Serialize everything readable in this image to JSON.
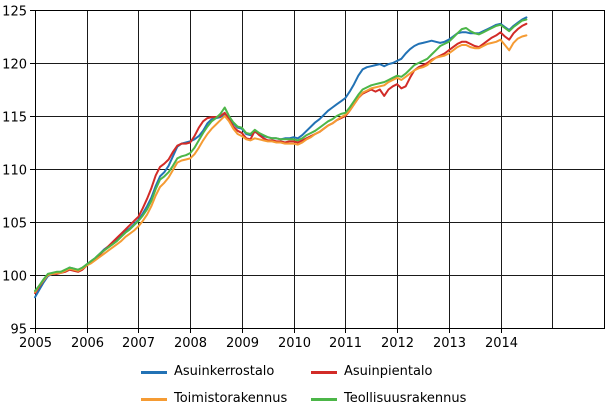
{
  "chart_data": {
    "type": "line",
    "title": "",
    "xlabel": "",
    "ylabel": "",
    "grid": true,
    "legend_position": "bottom",
    "x_axis": {
      "start_year": 2005,
      "points_per_year": 12,
      "tick_labels": [
        "2005",
        "2006",
        "2007",
        "2008",
        "2009",
        "2010",
        "2011",
        "2012",
        "2013",
        "2014"
      ],
      "extra_unlabeled_right_span_years": 1
    },
    "y_axis": {
      "min": 95,
      "max": 125,
      "ticks": [
        95,
        100,
        105,
        110,
        115,
        120,
        125
      ]
    },
    "series": [
      {
        "name": "Asuinkerrostalo",
        "color": "#2272b5",
        "values": [
          97.9,
          98.6,
          99.3,
          99.9,
          100.1,
          100.2,
          100.3,
          100.4,
          100.7,
          100.6,
          100.4,
          100.6,
          101.0,
          101.3,
          101.6,
          102.0,
          102.4,
          102.7,
          103.0,
          103.3,
          103.7,
          104.1,
          104.4,
          104.8,
          105.2,
          105.8,
          106.5,
          107.3,
          108.4,
          109.3,
          109.7,
          110.3,
          111.2,
          112.1,
          112.4,
          112.5,
          112.6,
          112.8,
          113.1,
          113.6,
          114.3,
          114.7,
          114.8,
          114.9,
          115.2,
          114.8,
          114.3,
          113.9,
          113.8,
          113.3,
          113.2,
          113.5,
          113.3,
          113.1,
          113.0,
          112.9,
          112.9,
          112.8,
          112.9,
          112.9,
          113.0,
          112.9,
          113.2,
          113.6,
          114.0,
          114.4,
          114.7,
          115.1,
          115.5,
          115.8,
          116.1,
          116.4,
          116.7,
          117.3,
          118.0,
          118.8,
          119.4,
          119.6,
          119.7,
          119.8,
          119.9,
          119.7,
          119.9,
          120.0,
          120.2,
          120.4,
          120.9,
          121.3,
          121.6,
          121.8,
          121.9,
          122.0,
          122.1,
          122.0,
          121.9,
          122.0,
          122.2,
          122.5,
          122.8,
          122.9,
          122.9,
          122.8,
          122.8,
          122.8,
          123.0,
          123.2,
          123.4,
          123.6,
          123.7,
          123.4,
          123.1,
          123.5,
          123.8,
          124.1,
          124.3
        ]
      },
      {
        "name": "Asuinpientalo",
        "color": "#d22b27",
        "values": [
          98.3,
          98.9,
          99.5,
          100.0,
          100.1,
          100.1,
          100.2,
          100.3,
          100.5,
          100.4,
          100.3,
          100.5,
          100.9,
          101.2,
          101.5,
          101.9,
          102.3,
          102.7,
          103.1,
          103.5,
          103.9,
          104.3,
          104.7,
          105.1,
          105.5,
          106.3,
          107.2,
          108.2,
          109.4,
          110.2,
          110.5,
          110.9,
          111.6,
          112.2,
          112.4,
          112.4,
          112.5,
          113.1,
          113.9,
          114.5,
          114.8,
          114.9,
          114.9,
          115.0,
          115.3,
          114.7,
          114.0,
          113.6,
          113.4,
          112.9,
          112.8,
          113.6,
          113.2,
          112.9,
          112.7,
          112.7,
          112.6,
          112.6,
          112.5,
          112.6,
          112.6,
          112.5,
          112.7,
          112.9,
          113.1,
          113.3,
          113.5,
          113.8,
          114.1,
          114.3,
          114.6,
          114.8,
          115.0,
          115.5,
          116.1,
          116.7,
          117.1,
          117.3,
          117.5,
          117.3,
          117.5,
          116.9,
          117.5,
          117.8,
          118.0,
          117.6,
          117.8,
          118.6,
          119.3,
          119.6,
          119.8,
          120.0,
          120.3,
          120.5,
          120.7,
          120.9,
          121.2,
          121.5,
          121.8,
          122.0,
          122.0,
          121.8,
          121.6,
          121.5,
          121.8,
          122.1,
          122.4,
          122.6,
          122.9,
          122.5,
          122.2,
          122.8,
          123.2,
          123.5,
          123.7
        ]
      },
      {
        "name": "Toimistorakennus",
        "color": "#f59b33",
        "values": [
          98.4,
          99.0,
          99.5,
          100.0,
          100.1,
          100.2,
          100.2,
          100.4,
          100.6,
          100.5,
          100.4,
          100.6,
          100.9,
          101.1,
          101.4,
          101.7,
          102.0,
          102.3,
          102.6,
          102.9,
          103.2,
          103.6,
          103.9,
          104.2,
          104.6,
          105.1,
          105.7,
          106.5,
          107.5,
          108.3,
          108.7,
          109.2,
          109.9,
          110.6,
          110.8,
          110.9,
          111.0,
          111.4,
          112.0,
          112.7,
          113.3,
          113.8,
          114.2,
          114.6,
          115.0,
          114.5,
          113.8,
          113.3,
          113.1,
          112.8,
          112.7,
          112.9,
          112.8,
          112.7,
          112.6,
          112.6,
          112.5,
          112.5,
          112.4,
          112.4,
          112.4,
          112.3,
          112.5,
          112.8,
          113.0,
          113.3,
          113.5,
          113.8,
          114.1,
          114.3,
          114.6,
          114.9,
          115.1,
          115.5,
          116.1,
          116.7,
          117.2,
          117.4,
          117.6,
          117.7,
          117.8,
          117.9,
          118.2,
          118.4,
          118.6,
          118.4,
          118.7,
          119.0,
          119.3,
          119.5,
          119.6,
          119.8,
          120.2,
          120.5,
          120.6,
          120.7,
          120.9,
          121.2,
          121.5,
          121.7,
          121.7,
          121.5,
          121.4,
          121.4,
          121.6,
          121.8,
          121.9,
          122.0,
          122.2,
          121.7,
          121.2,
          121.9,
          122.3,
          122.5,
          122.6
        ]
      },
      {
        "name": "Teollisuusrakennus",
        "color": "#4cb648",
        "values": [
          98.5,
          99.0,
          99.6,
          100.1,
          100.2,
          100.3,
          100.3,
          100.5,
          100.7,
          100.6,
          100.5,
          100.7,
          101.0,
          101.3,
          101.6,
          102.0,
          102.3,
          102.6,
          102.9,
          103.2,
          103.6,
          104.0,
          104.3,
          104.7,
          105.1,
          105.6,
          106.2,
          107.0,
          108.1,
          109.0,
          109.3,
          109.7,
          110.3,
          111.0,
          111.2,
          111.3,
          111.5,
          112.0,
          112.7,
          113.4,
          114.0,
          114.5,
          114.8,
          115.2,
          115.8,
          115.0,
          114.4,
          114.0,
          113.9,
          113.4,
          113.3,
          113.7,
          113.4,
          113.2,
          113.0,
          112.9,
          112.9,
          112.8,
          112.8,
          112.8,
          112.8,
          112.7,
          112.9,
          113.2,
          113.4,
          113.6,
          113.9,
          114.2,
          114.5,
          114.7,
          115.0,
          115.2,
          115.3,
          115.8,
          116.4,
          117.0,
          117.5,
          117.7,
          117.9,
          118.0,
          118.1,
          118.2,
          118.4,
          118.6,
          118.8,
          118.7,
          119.0,
          119.4,
          119.8,
          120.0,
          120.2,
          120.4,
          120.8,
          121.2,
          121.6,
          121.8,
          122.0,
          122.4,
          122.8,
          123.2,
          123.3,
          123.0,
          122.8,
          122.7,
          122.9,
          123.1,
          123.3,
          123.5,
          123.6,
          123.3,
          123.0,
          123.4,
          123.7,
          124.0,
          124.1
        ]
      }
    ],
    "style": {
      "grid_color": "#1a1a1a",
      "axis_color": "#000000",
      "tick_label_color": "#000000",
      "background": "#ffffff",
      "line_width": 2
    }
  }
}
